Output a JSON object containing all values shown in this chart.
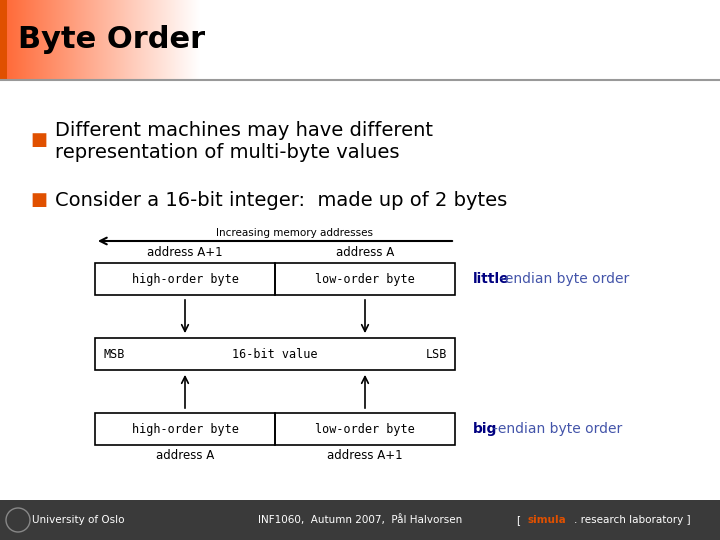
{
  "title": "Byte Order",
  "title_color": "#000000",
  "title_bar_color": "#E05000",
  "title_gradient_right": "#F8D0C0",
  "background_color": "#F0F0F0",
  "main_bg": "#F0F0F0",
  "bullet_color": "#E05000",
  "footer_bg": "#3A3A3A",
  "footer_left": "University of Oslo",
  "footer_center": "INF1060,  Autumn 2007,  Pål Halvorsen",
  "footer_color": "#FFFFFF",
  "footer_orange": "#E05000",
  "box_color": "#000000",
  "arrow_color": "#000000",
  "little_bold": "little",
  "big_bold": "big",
  "endian_label_color": "#4455AA",
  "endian_bold_color": "#000080",
  "mono_font": "DejaVu Sans Mono"
}
